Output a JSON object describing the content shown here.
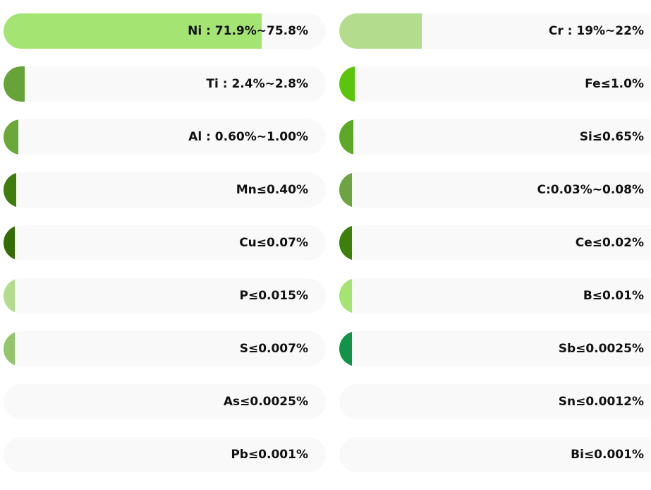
{
  "chart_data": {
    "type": "bar",
    "orientation": "horizontal",
    "columns": [
      {
        "items": [
          {
            "label": "Ni : 71.9%~75.8%",
            "fill": 0.8,
            "color": "#a4e473"
          },
          {
            "label": "Ti : 2.4%~2.8%",
            "fill": 0.065,
            "color": "#67a338"
          },
          {
            "label": "Al : 0.60%~1.00%",
            "fill": 0.045,
            "color": "#6aa839"
          },
          {
            "label": "Mn≤0.40%",
            "fill": 0.04,
            "color": "#3f7d0d"
          },
          {
            "label": "Cu≤0.07%",
            "fill": 0.035,
            "color": "#346d05"
          },
          {
            "label": "P≤0.015%",
            "fill": 0.035,
            "color": "#b4dc8f"
          },
          {
            "label": "S≤0.007%",
            "fill": 0.035,
            "color": "#93c56a"
          },
          {
            "label": "As≤0.0025%",
            "fill": 0,
            "color": "#f9f9f9"
          },
          {
            "label": "Pb≤0.001%",
            "fill": 0,
            "color": "#f9f9f9"
          }
        ]
      },
      {
        "items": [
          {
            "label": "Cr : 19%~22%",
            "fill": 0.265,
            "color": "#b3dc8c"
          },
          {
            "label": "Fe≤1.0%",
            "fill": 0.05,
            "color": "#5cc40a"
          },
          {
            "label": "Si≤0.65%",
            "fill": 0.045,
            "color": "#5ea827"
          },
          {
            "label": "C:0.03%~0.08%",
            "fill": 0.04,
            "color": "#6da340"
          },
          {
            "label": "Ce≤0.02%",
            "fill": 0.04,
            "color": "#3c800b"
          },
          {
            "label": "B≤0.01%",
            "fill": 0.04,
            "color": "#a4e473"
          },
          {
            "label": "Sb≤0.0025%",
            "fill": 0.04,
            "color": "#119447"
          },
          {
            "label": "Sn≤0.0012%",
            "fill": 0,
            "color": "#f9f9f9"
          },
          {
            "label": "Bi≤0.001%",
            "fill": 0,
            "color": "#f9f9f9"
          }
        ]
      }
    ]
  }
}
